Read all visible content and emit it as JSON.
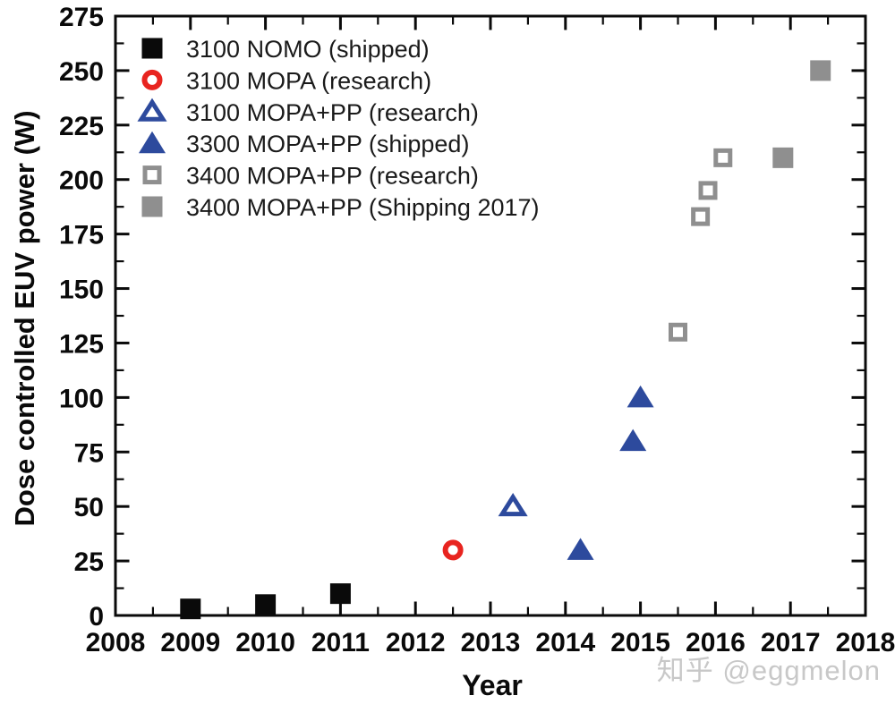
{
  "figure": {
    "title": "",
    "watermark": "知乎 @eggmelon"
  },
  "chart_data": {
    "type": "scatter",
    "title": "",
    "xlabel": "Year",
    "ylabel": "Dose controlled EUV power (W)",
    "xlim": [
      2008,
      2018
    ],
    "ylim": [
      0,
      275
    ],
    "x_ticks": [
      2008,
      2009,
      2010,
      2011,
      2012,
      2013,
      2014,
      2015,
      2016,
      2017,
      2018
    ],
    "x_minor_step": 0.5,
    "y_ticks": [
      0,
      25,
      50,
      75,
      100,
      125,
      150,
      175,
      200,
      225,
      250,
      275
    ],
    "y_minor_step": 12.5,
    "grid": false,
    "legend_position": "top-left",
    "axis_color": "#0a0a0a",
    "series": [
      {
        "name": "3100 NOMO (shipped)",
        "marker": "square",
        "fill": "filled",
        "color": "#0a0a0a",
        "points": [
          [
            2009.0,
            3
          ],
          [
            2010.0,
            5
          ],
          [
            2011.0,
            10
          ]
        ]
      },
      {
        "name": "3100 MOPA (research)",
        "marker": "circle",
        "fill": "open",
        "color": "#e8241f",
        "points": [
          [
            2012.5,
            30
          ]
        ]
      },
      {
        "name": "3100 MOPA+PP (research)",
        "marker": "triangle",
        "fill": "open",
        "color": "#2d4a9d",
        "points": [
          [
            2013.3,
            50
          ]
        ]
      },
      {
        "name": "3300 MOPA+PP (shipped)",
        "marker": "triangle",
        "fill": "filled",
        "color": "#2d4a9d",
        "points": [
          [
            2014.2,
            30
          ],
          [
            2014.9,
            80
          ],
          [
            2015.0,
            100
          ]
        ]
      },
      {
        "name": "3400 MOPA+PP (research)",
        "marker": "square",
        "fill": "open",
        "color": "#8f8f8f",
        "points": [
          [
            2015.5,
            130
          ],
          [
            2015.8,
            183
          ],
          [
            2015.9,
            195
          ],
          [
            2016.1,
            210
          ]
        ]
      },
      {
        "name": "3400 MOPA+PP (Shipping 2017)",
        "marker": "square",
        "fill": "filled",
        "color": "#8f8f8f",
        "points": [
          [
            2016.9,
            210
          ],
          [
            2017.4,
            250
          ]
        ]
      }
    ]
  }
}
